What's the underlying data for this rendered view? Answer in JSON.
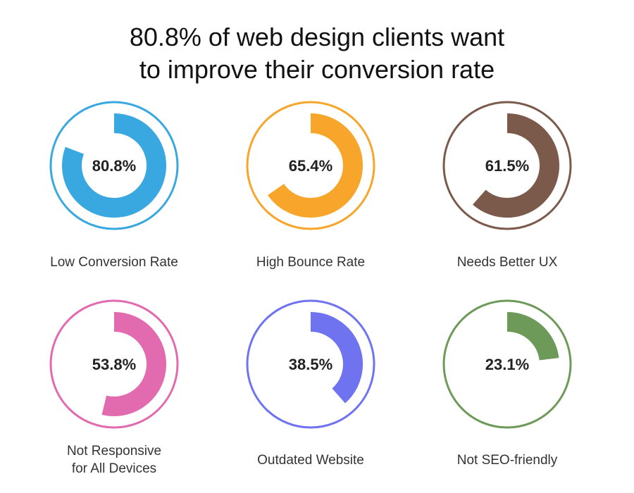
{
  "title_lines": [
    "80.8% of web design clients want",
    "to improve their conversion rate"
  ],
  "chart_data": [
    {
      "type": "pie",
      "value": 80.8,
      "value_label": "80.8%",
      "label": "Low Conversion Rate",
      "color": "#3aa8e0"
    },
    {
      "type": "pie",
      "value": 65.4,
      "value_label": "65.4%",
      "label": "High Bounce Rate",
      "color": "#f7a52b"
    },
    {
      "type": "pie",
      "value": 61.5,
      "value_label": "61.5%",
      "label": "Needs Better UX",
      "color": "#7c5a4b"
    },
    {
      "type": "pie",
      "value": 53.8,
      "value_label": "53.8%",
      "label": "Not Responsive\nfor All Devices",
      "color": "#e26aae"
    },
    {
      "type": "pie",
      "value": 38.5,
      "value_label": "38.5%",
      "label": "Outdated Website",
      "color": "#6f73f0"
    },
    {
      "type": "pie",
      "value": 23.1,
      "value_label": "23.1%",
      "label": "Not SEO-friendly",
      "color": "#6e9a59"
    }
  ]
}
